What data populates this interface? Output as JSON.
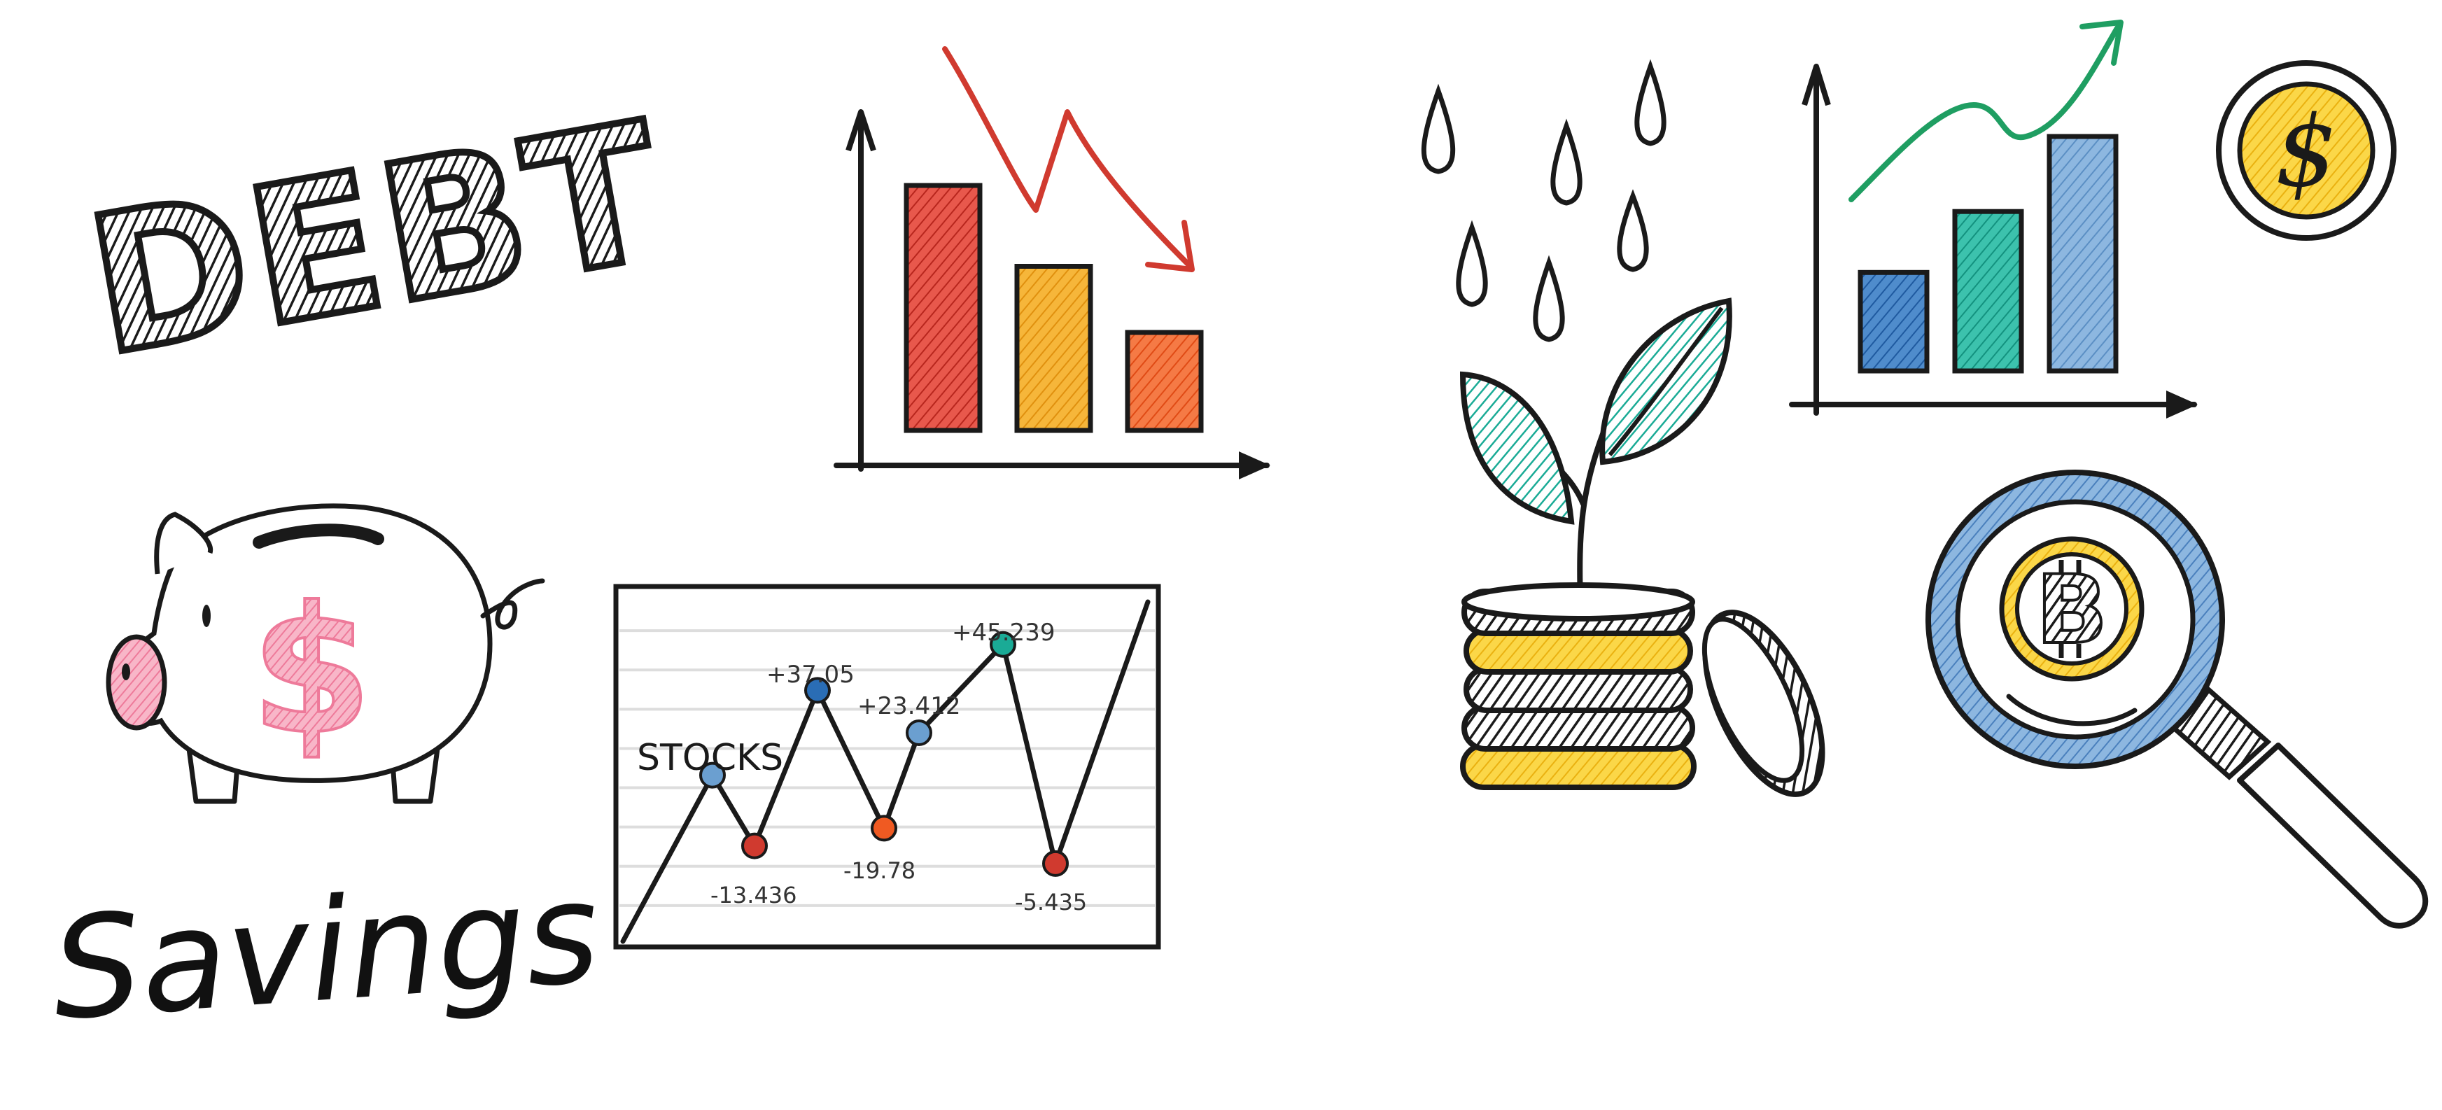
{
  "debt_label": "DEBT",
  "savings_label": "Savings",
  "stocks": {
    "label": "STOCKS",
    "annotations": [
      "+37.05",
      "+23.412",
      "+45.239",
      "-13.436",
      "-19.78",
      "-5.435"
    ]
  },
  "coin_symbol": "$",
  "piggy_symbol": "$",
  "crypto_symbol": "B",
  "colors": {
    "ink": "#1a1a1a",
    "red": "#d03a2f",
    "orange": "#f0a21a",
    "orange_red": "#f05a22",
    "teal": "#1aab96",
    "blue_dark": "#2a6db5",
    "blue_light": "#6b9fd0",
    "green_arrow": "#1f9e62",
    "yellow": "#f7c51e",
    "pink": "#f28aa8"
  },
  "chart_data": [
    {
      "type": "bar",
      "trend": "down",
      "categories": [
        "",
        "",
        ""
      ],
      "values": [
        100,
        67,
        40
      ],
      "colors": [
        "#d03a2f",
        "#f0a21a",
        "#f05a22"
      ]
    },
    {
      "type": "line",
      "label": "STOCKS",
      "points": [
        {
          "label": "",
          "value": 0.48
        },
        {
          "label": "-13.436",
          "value": 0.28
        },
        {
          "label": "+37.05",
          "value": 0.72
        },
        {
          "label": "-19.78",
          "value": 0.33
        },
        {
          "label": "+23.412",
          "value": 0.6
        },
        {
          "label": "+45.239",
          "value": 0.85
        },
        {
          "label": "-5.435",
          "value": 0.23
        }
      ]
    },
    {
      "type": "bar",
      "trend": "up",
      "categories": [
        "",
        "",
        ""
      ],
      "values": [
        42,
        68,
        100
      ],
      "colors": [
        "#2a6db5",
        "#1aab96",
        "#6b9fd0"
      ]
    }
  ]
}
